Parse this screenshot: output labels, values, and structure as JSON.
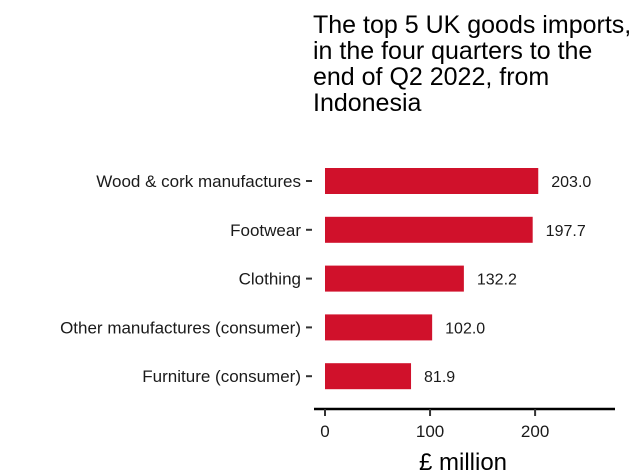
{
  "chart_data": {
    "type": "bar",
    "orientation": "horizontal",
    "title": "The top 5 UK goods imports, in the four quarters to the end of Q2 2022, from Indonesia",
    "xlabel": "£ million",
    "ylabel": "",
    "categories": [
      "Wood & cork manufactures",
      "Footwear",
      "Clothing",
      "Other manufactures (consumer)",
      "Furniture (consumer)"
    ],
    "values": [
      203.0,
      197.7,
      132.2,
      102.0,
      81.9
    ],
    "value_labels": [
      "203.0",
      "197.7",
      "132.2",
      "102.0",
      "81.9"
    ],
    "xlim": [
      0,
      275
    ],
    "xticks": [
      0,
      100,
      200
    ],
    "xtick_labels": [
      "0",
      "100",
      "200"
    ],
    "grid": false,
    "legend": "none",
    "bar_color": "#D0112B"
  }
}
